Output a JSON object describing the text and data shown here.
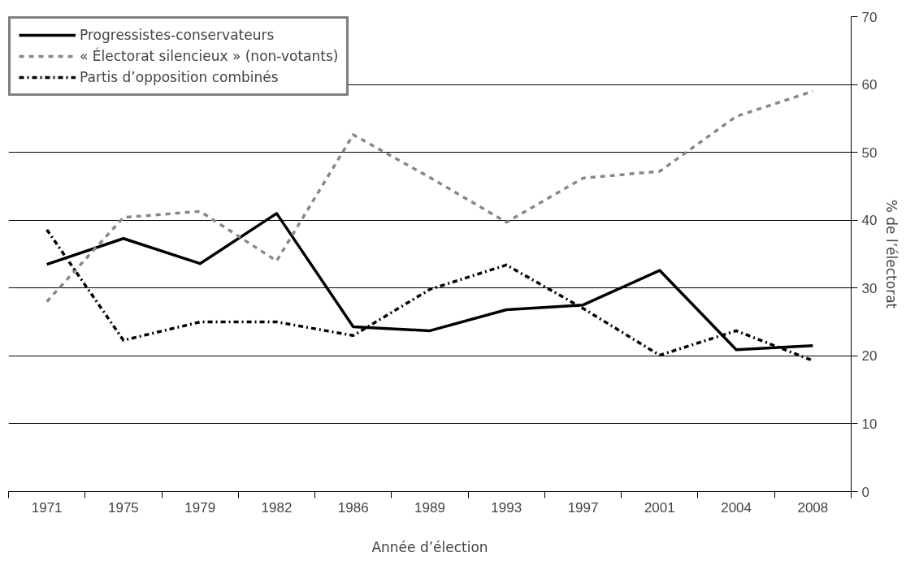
{
  "chart_data": {
    "type": "line",
    "xlabel": "Année d’élection",
    "ylabel": "% de l’électorat",
    "categories": [
      "1971",
      "1975",
      "1979",
      "1982",
      "1986",
      "1989",
      "1993",
      "1997",
      "2001",
      "2004",
      "2008"
    ],
    "series": [
      {
        "name": "Progressistes-conservateurs",
        "color": "#000000",
        "line_style": "solid",
        "values": [
          33.5,
          37.3,
          33.6,
          41.0,
          24.3,
          23.7,
          26.8,
          27.5,
          32.6,
          20.9,
          21.5
        ]
      },
      {
        "name": "« Électorat silencieux » (non-votants)",
        "color": "#888888",
        "line_style": "dashed",
        "values": [
          28.0,
          40.4,
          41.3,
          34.0,
          52.6,
          46.3,
          39.7,
          46.2,
          47.2,
          55.3,
          59.0
        ]
      },
      {
        "name": "Partis d’opposition combinés",
        "color": "#000000",
        "line_style": "dashdot",
        "values": [
          38.6,
          22.3,
          25.0,
          25.0,
          23.0,
          29.8,
          33.4,
          27.0,
          20.1,
          23.7,
          19.3
        ]
      }
    ],
    "ylim": [
      0,
      70
    ],
    "yticks": [
      0,
      10,
      20,
      30,
      40,
      50,
      60,
      70
    ],
    "grid": "y",
    "legend": "top left",
    "marker": "none"
  }
}
